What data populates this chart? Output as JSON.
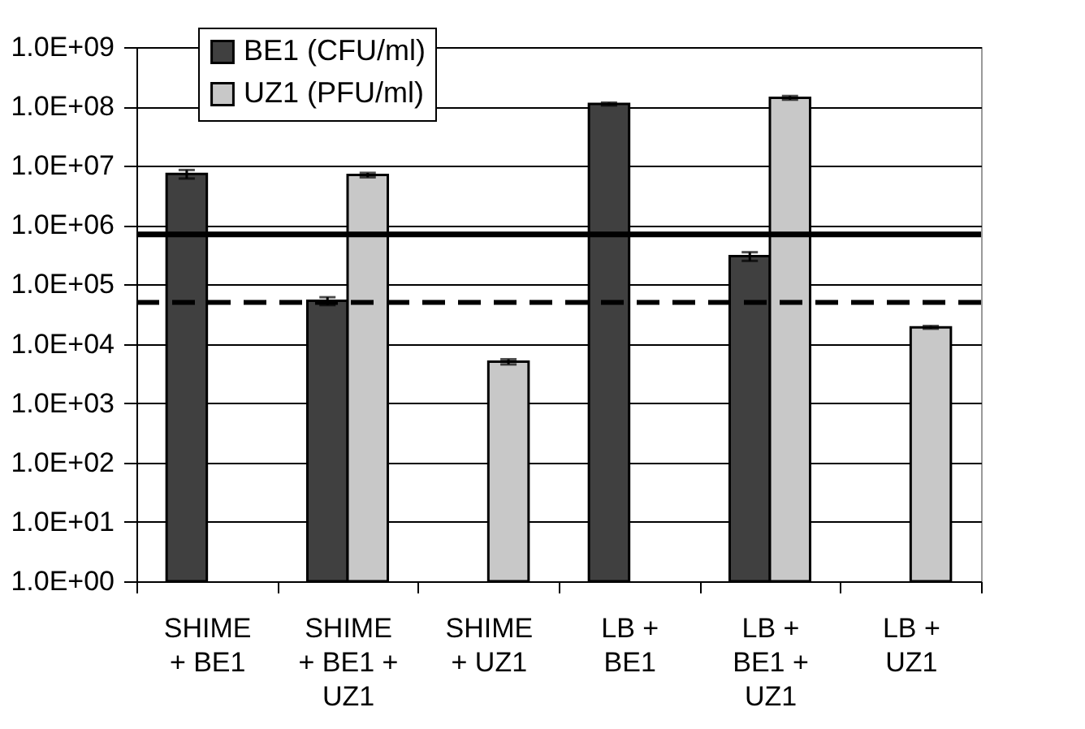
{
  "chart_data": {
    "type": "bar",
    "categories": [
      "SHIME + BE1",
      "SHIME + BE1 + UZ1",
      "SHIME + UZ1",
      "LB + BE1",
      "LB + BE1 + UZ1",
      "LB + UZ1"
    ],
    "series": [
      {
        "name": "BE1 (CFU/ml)",
        "color": "#404040",
        "values": [
          7300000,
          53000,
          null,
          110000000,
          300000,
          null
        ],
        "errors": [
          1200000,
          8000,
          null,
          6000000,
          50000,
          null
        ]
      },
      {
        "name": "UZ1 (PFU/ml)",
        "color": "#c8c8c8",
        "values": [
          null,
          7000000,
          5000,
          null,
          140000000,
          19000
        ],
        "errors": [
          null,
          600000,
          500,
          null,
          10000000,
          1000
        ]
      }
    ],
    "log": true,
    "ylim": [
      1,
      1000000000
    ],
    "yticks": [
      {
        "value": 1,
        "label": "1.0E+00"
      },
      {
        "value": 10,
        "label": "1.0E+01"
      },
      {
        "value": 100,
        "label": "1.0E+02"
      },
      {
        "value": 1000,
        "label": "1.0E+03"
      },
      {
        "value": 10000,
        "label": "1.0E+04"
      },
      {
        "value": 100000,
        "label": "1.0E+05"
      },
      {
        "value": 1000000,
        "label": "1.0E+06"
      },
      {
        "value": 10000000,
        "label": "1.0E+07"
      },
      {
        "value": 100000000,
        "label": "1.0E+08"
      },
      {
        "value": 1000000000,
        "label": "1.0E+09"
      }
    ],
    "ref_lines": [
      {
        "axis": "y",
        "value": 700000,
        "line_style": "solid"
      },
      {
        "axis": "y",
        "value": 50000,
        "line_style": "dashed"
      }
    ],
    "grid": "y",
    "legend": "top left"
  }
}
